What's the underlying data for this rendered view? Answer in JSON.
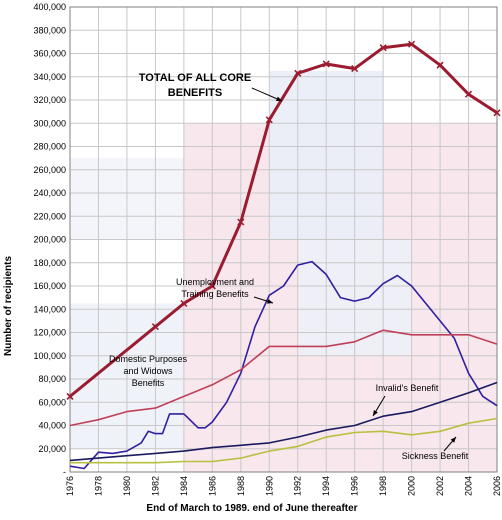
{
  "chart_data": {
    "type": "line",
    "xlabel": "End of March to 1989. end of June thereafter",
    "ylabel": "Number of recipients",
    "xlim": [
      1976,
      2006
    ],
    "ylim": [
      0,
      400000
    ],
    "grid": true,
    "x_ticks": [
      "1976",
      "1978",
      "1980",
      "1982",
      "1984",
      "1986",
      "1988",
      "1990",
      "1992",
      "1994",
      "1996",
      "1998",
      "2000",
      "2002",
      "2004",
      "2006"
    ],
    "y_ticks": [
      "-",
      "20,000",
      "40,000",
      "60,000",
      "80,000",
      "100,000",
      "120,000",
      "140,000",
      "160,000",
      "180,000",
      "200,000",
      "220,000",
      "240,000",
      "260,000",
      "280,000",
      "300,000",
      "320,000",
      "340,000",
      "360,000",
      "380,000",
      "400,000"
    ],
    "colors": {
      "total": "#9b1b30",
      "unemployment": "#3020a0",
      "dpb": "#c0405a",
      "invalids": "#1a1a60",
      "sickness": "#b8c040",
      "grid": "#c8c8c8"
    },
    "series": [
      {
        "key": "total",
        "name": "TOTAL OF ALL CORE BENEFITS",
        "x": [
          1976,
          1982,
          1984,
          1986,
          1988,
          1990,
          1992,
          1994,
          1996,
          1998,
          2000,
          2002,
          2004,
          2006
        ],
        "values": [
          65000,
          125000,
          145000,
          160000,
          215000,
          303000,
          343000,
          351000,
          347000,
          365000,
          368000,
          350000,
          325000,
          309000
        ]
      },
      {
        "key": "unemployment",
        "name": "Unemployment and Training Benefits",
        "x": [
          1976,
          1977,
          1978,
          1979,
          1980,
          1981,
          1981.5,
          1982,
          1982.5,
          1983,
          1983.5,
          1984,
          1985,
          1985.5,
          1986,
          1987,
          1988,
          1989,
          1990,
          1991,
          1992,
          1993,
          1994,
          1995,
          1996,
          1997,
          1998,
          1999,
          2000,
          2001,
          2002,
          2003,
          2004,
          2005,
          2006
        ],
        "values": [
          5000,
          3000,
          17000,
          16000,
          18000,
          25000,
          35000,
          33000,
          33000,
          50000,
          50000,
          50000,
          38000,
          38000,
          43000,
          60000,
          85000,
          125000,
          152000,
          160000,
          178000,
          181000,
          170000,
          150000,
          147000,
          150000,
          162000,
          169000,
          160000,
          145000,
          130000,
          115000,
          85000,
          65000,
          57000
        ]
      },
      {
        "key": "dpb",
        "name": "Domestic Purposes and Widows Benefits",
        "x": [
          1976,
          1978,
          1980,
          1982,
          1984,
          1986,
          1988,
          1990,
          1992,
          1994,
          1996,
          1998,
          2000,
          2002,
          2004,
          2006
        ],
        "values": [
          40000,
          45000,
          52000,
          55000,
          65000,
          75000,
          88000,
          108000,
          108000,
          108000,
          112000,
          122000,
          118000,
          118000,
          118000,
          110000
        ]
      },
      {
        "key": "invalids",
        "name": "Invalid's Benefit",
        "x": [
          1976,
          1978,
          1980,
          1982,
          1984,
          1986,
          1988,
          1990,
          1992,
          1994,
          1996,
          1998,
          2000,
          2002,
          2004,
          2006
        ],
        "values": [
          10000,
          12000,
          14000,
          16000,
          18000,
          21000,
          23000,
          25000,
          30000,
          36000,
          40000,
          48000,
          52000,
          60000,
          68000,
          77000
        ]
      },
      {
        "key": "sickness",
        "name": "Sickness Benefit",
        "x": [
          1976,
          1978,
          1980,
          1982,
          1984,
          1986,
          1988,
          1990,
          1992,
          1994,
          1996,
          1998,
          2000,
          2002,
          2004,
          2006
        ],
        "values": [
          8000,
          8000,
          8000,
          8000,
          9000,
          9000,
          12000,
          18000,
          22000,
          30000,
          34000,
          35000,
          32000,
          35000,
          42000,
          46000
        ]
      }
    ]
  }
}
